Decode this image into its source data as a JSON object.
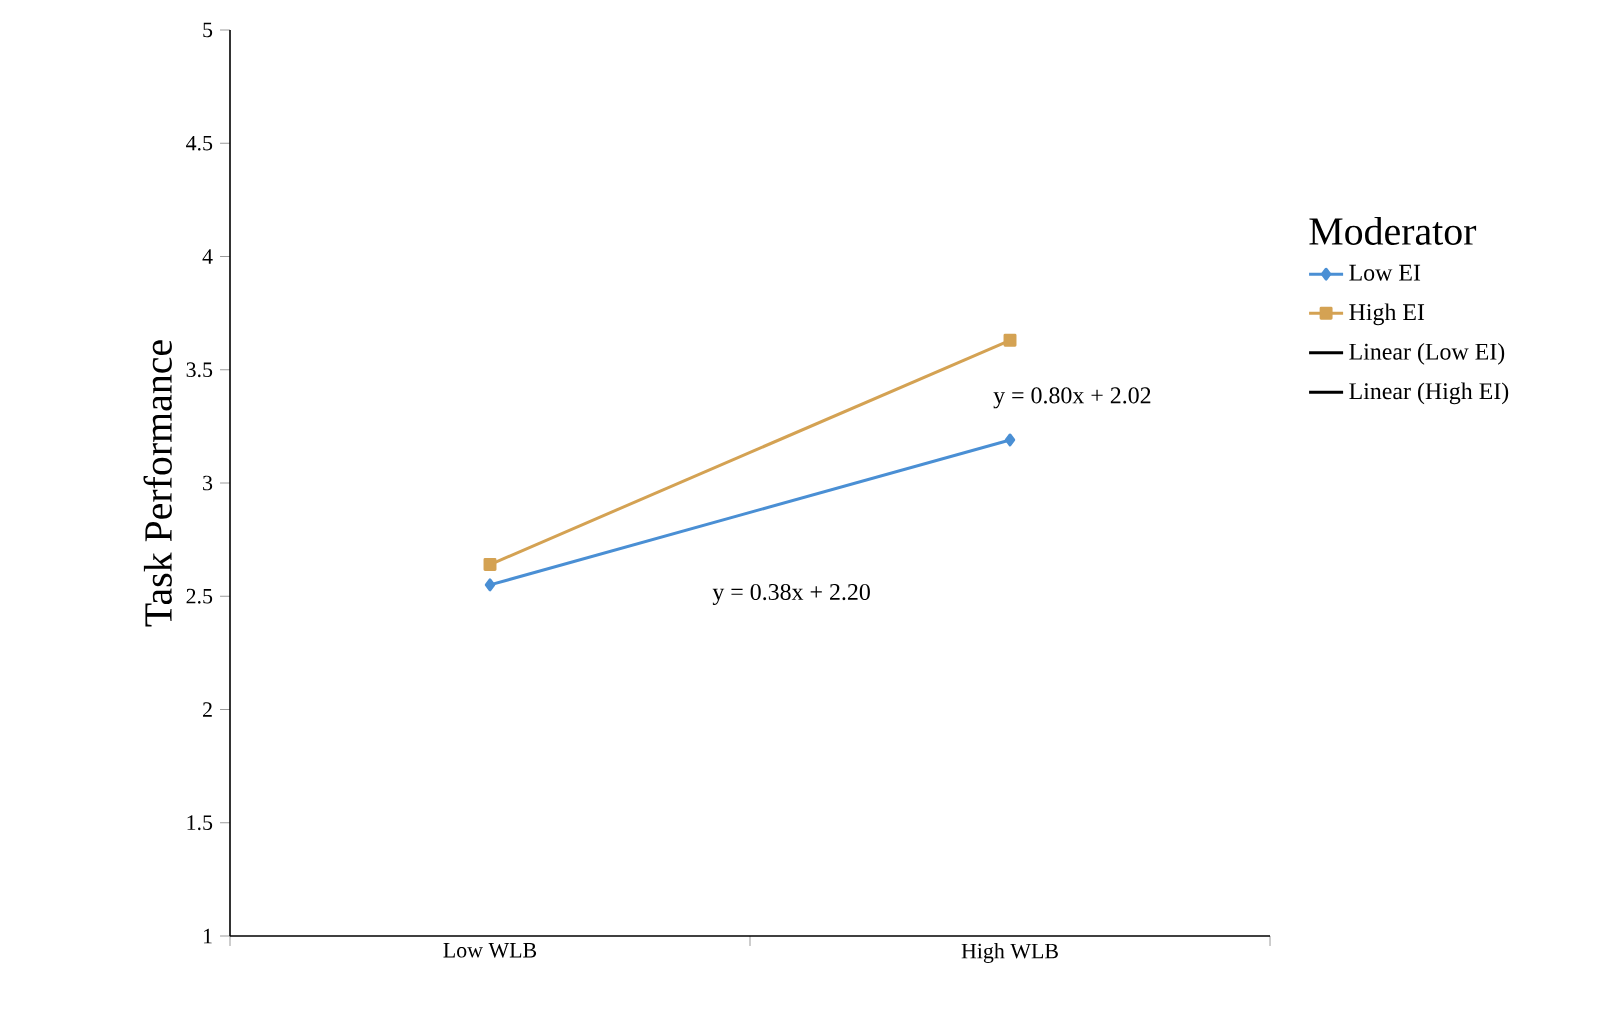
{
  "chart_data": {
    "type": "line",
    "ylabel": "Task Performance",
    "legend_title": "Moderator",
    "categories": [
      "Low WLB",
      "High WLB"
    ],
    "series": [
      {
        "name": "Low EI",
        "color": "#4a8fd4",
        "marker": "diamond",
        "values": [
          2.55,
          3.19
        ]
      },
      {
        "name": "High EI",
        "color": "#d4a253",
        "marker": "square",
        "values": [
          2.64,
          3.63
        ]
      },
      {
        "name": "Linear (Low EI)",
        "color": "#000000",
        "marker": "none",
        "values": [
          null,
          null
        ]
      },
      {
        "name": "Linear (High EI)",
        "color": "#000000",
        "marker": "none",
        "values": [
          null,
          null
        ]
      }
    ],
    "ylim": [
      1,
      5
    ],
    "yticks": [
      1,
      1.5,
      2,
      2.5,
      3,
      3.5,
      4,
      4.5,
      5
    ],
    "legend": "right",
    "grid": false,
    "annotations": [
      "y = 0.80x + 2.02",
      "y = 0.38x + 2.20"
    ]
  }
}
